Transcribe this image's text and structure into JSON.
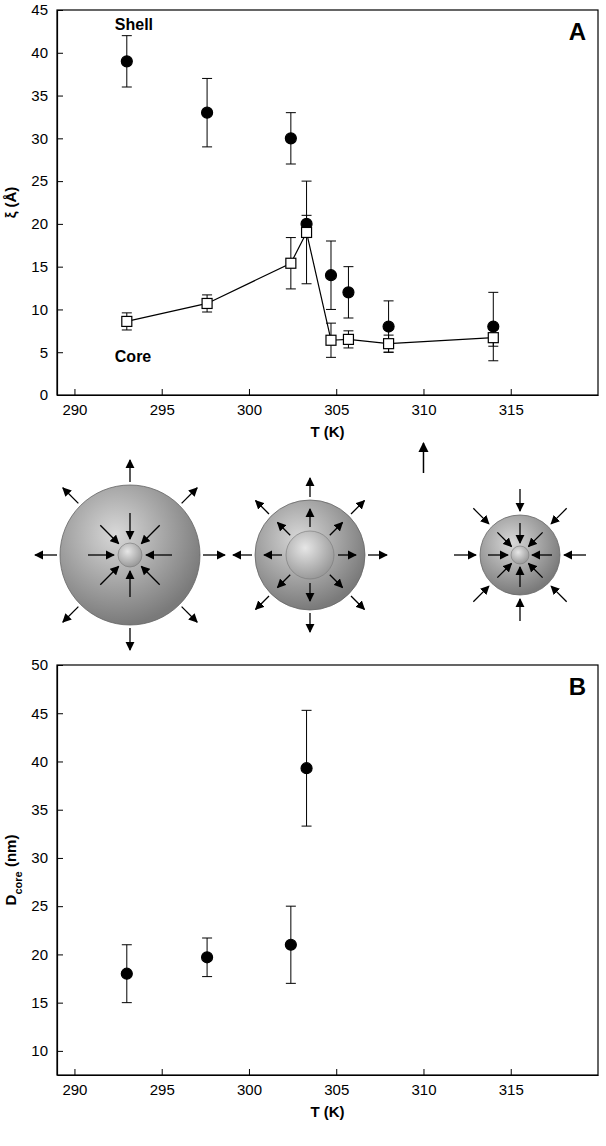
{
  "chart_data": [
    {
      "type": "scatter",
      "panel": "A",
      "x_label": "T (K)",
      "y_label": "ξ (Å)",
      "xlim": [
        289,
        320
      ],
      "ylim": [
        0,
        45
      ],
      "xticks": [
        290,
        295,
        300,
        305,
        310,
        315
      ],
      "yticks": [
        0,
        5,
        10,
        15,
        20,
        25,
        30,
        35,
        40,
        45
      ],
      "arrow_at": 310,
      "series": [
        {
          "name": "Shell",
          "color": "#000000",
          "marker": "circle",
          "line_style": "none",
          "x": [
            293,
            297.6,
            302.4,
            303.3,
            304.7,
            305.7,
            308,
            314
          ],
          "values": [
            39,
            33,
            30,
            20,
            14,
            12,
            8,
            8
          ],
          "errors": [
            3,
            4,
            3,
            1,
            4,
            3,
            3,
            4
          ]
        },
        {
          "name": "Core",
          "color": "#000000",
          "marker": "open_square",
          "line_style": "solid",
          "x": [
            293,
            297.6,
            302.4,
            303.3,
            304.7,
            305.7,
            308,
            314
          ],
          "values": [
            8.6,
            10.7,
            15.4,
            19,
            6.4,
            6.5,
            6,
            6.7
          ],
          "errors": [
            1,
            1,
            3,
            6,
            2,
            1,
            1,
            1
          ]
        }
      ]
    },
    {
      "type": "scatter",
      "panel": "B",
      "x_label": "T (K)",
      "y_label": "Dcore (nm)",
      "xlim": [
        289,
        320
      ],
      "ylim": [
        7.5,
        50
      ],
      "xticks": [
        290,
        295,
        300,
        305,
        310,
        315
      ],
      "yticks": [
        10,
        15,
        20,
        25,
        30,
        35,
        40,
        45,
        50
      ],
      "series": [
        {
          "color": "#000000",
          "marker": "circle",
          "line_style": "none",
          "x": [
            293,
            297.6,
            302.4,
            303.3
          ],
          "values": [
            18,
            19.7,
            21,
            39.3
          ],
          "errors": [
            3,
            2,
            4,
            6
          ]
        }
      ]
    }
  ]
}
